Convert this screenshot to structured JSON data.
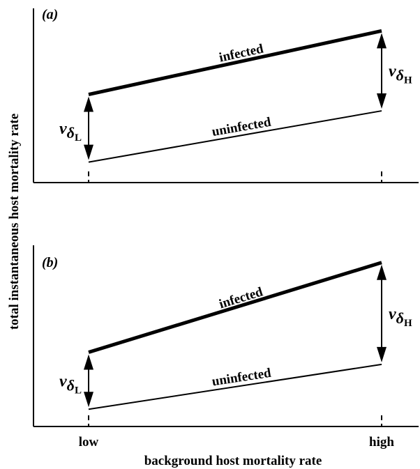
{
  "chart_data": [
    {
      "type": "line",
      "panel_label": "(a)",
      "x": [
        "low",
        "high"
      ],
      "series": [
        {
          "name": "infected",
          "values": [
            4.3,
            7.4
          ],
          "line_weight": "thick"
        },
        {
          "name": "uninfected",
          "values": [
            1.0,
            3.5
          ],
          "line_weight": "thin"
        }
      ],
      "annotations": [
        {
          "text": "v",
          "subscript": "δ",
          "subsubscript": "L",
          "at": "low"
        },
        {
          "text": "v",
          "subscript": "δ",
          "subsubscript": "H",
          "at": "high"
        }
      ],
      "ylim": [
        0,
        8.5
      ],
      "grid": false
    },
    {
      "type": "line",
      "panel_label": "(b)",
      "x": [
        "low",
        "high"
      ],
      "series": [
        {
          "name": "infected",
          "values": [
            4.3,
            9.5
          ],
          "line_weight": "thick"
        },
        {
          "name": "uninfected",
          "values": [
            1.0,
            3.6
          ],
          "line_weight": "thin"
        }
      ],
      "annotations": [
        {
          "text": "v",
          "subscript": "δ",
          "subsubscript": "L",
          "at": "low"
        },
        {
          "text": "v",
          "subscript": "δ",
          "subsubscript": "H",
          "at": "high"
        }
      ],
      "ylim": [
        0,
        10.5
      ],
      "grid": false
    }
  ],
  "xlabel": "background host mortality rate",
  "ylabel": "total instantaneous host mortality rate",
  "x_tick_labels": [
    "low",
    "high"
  ],
  "colors": {
    "ink": "#000000",
    "background": "#ffffff"
  }
}
